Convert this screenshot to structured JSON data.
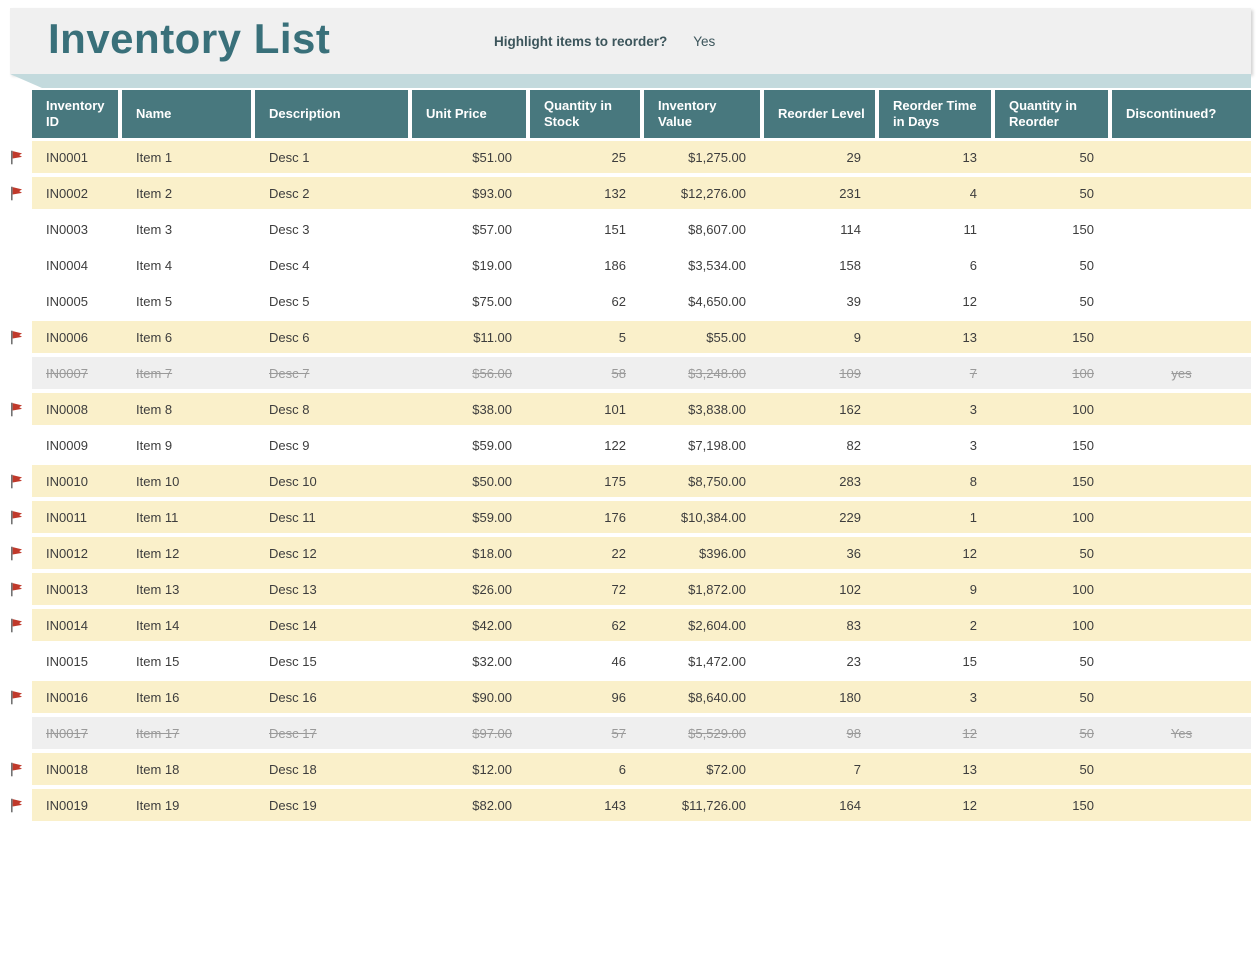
{
  "header": {
    "title": "Inventory List",
    "highlight_label": "Highlight items to reorder?",
    "highlight_value": "Yes"
  },
  "colors": {
    "accent_teal": "#48787e",
    "title_teal": "#39707a",
    "strip_teal": "#c3dadd",
    "highlight_row": "#faf0ca",
    "discontinued_row": "#efefef",
    "flag_red": "#c0392b"
  },
  "icons": {
    "flag": "reorder-flag-icon"
  },
  "table": {
    "columns": [
      {
        "key": "id",
        "label": "Inventory ID",
        "align": "left"
      },
      {
        "key": "name",
        "label": "Name",
        "align": "left"
      },
      {
        "key": "desc",
        "label": "Description",
        "align": "left"
      },
      {
        "key": "unit_price",
        "label": "Unit Price",
        "align": "right"
      },
      {
        "key": "qty_stock",
        "label": "Quantity in Stock",
        "align": "right"
      },
      {
        "key": "inv_value",
        "label": "Inventory Value",
        "align": "right"
      },
      {
        "key": "reorder_level",
        "label": "Reorder Level",
        "align": "right"
      },
      {
        "key": "reorder_time",
        "label": "Reorder Time in Days",
        "align": "right"
      },
      {
        "key": "qty_reorder",
        "label": "Quantity in Reorder",
        "align": "right"
      },
      {
        "key": "discontinued",
        "label": "Discontinued?",
        "align": "center"
      }
    ],
    "rows": [
      {
        "id": "IN0001",
        "name": "Item 1",
        "desc": "Desc 1",
        "unit_price": "$51.00",
        "qty_stock": "25",
        "inv_value": "$1,275.00",
        "reorder_level": "29",
        "reorder_time": "13",
        "qty_reorder": "50",
        "discontinued": "",
        "flag": true,
        "state": "highlight"
      },
      {
        "id": "IN0002",
        "name": "Item 2",
        "desc": "Desc 2",
        "unit_price": "$93.00",
        "qty_stock": "132",
        "inv_value": "$12,276.00",
        "reorder_level": "231",
        "reorder_time": "4",
        "qty_reorder": "50",
        "discontinued": "",
        "flag": true,
        "state": "highlight"
      },
      {
        "id": "IN0003",
        "name": "Item 3",
        "desc": "Desc 3",
        "unit_price": "$57.00",
        "qty_stock": "151",
        "inv_value": "$8,607.00",
        "reorder_level": "114",
        "reorder_time": "11",
        "qty_reorder": "150",
        "discontinued": "",
        "flag": false,
        "state": "normal"
      },
      {
        "id": "IN0004",
        "name": "Item 4",
        "desc": "Desc 4",
        "unit_price": "$19.00",
        "qty_stock": "186",
        "inv_value": "$3,534.00",
        "reorder_level": "158",
        "reorder_time": "6",
        "qty_reorder": "50",
        "discontinued": "",
        "flag": false,
        "state": "normal"
      },
      {
        "id": "IN0005",
        "name": "Item 5",
        "desc": "Desc 5",
        "unit_price": "$75.00",
        "qty_stock": "62",
        "inv_value": "$4,650.00",
        "reorder_level": "39",
        "reorder_time": "12",
        "qty_reorder": "50",
        "discontinued": "",
        "flag": false,
        "state": "normal"
      },
      {
        "id": "IN0006",
        "name": "Item 6",
        "desc": "Desc 6",
        "unit_price": "$11.00",
        "qty_stock": "5",
        "inv_value": "$55.00",
        "reorder_level": "9",
        "reorder_time": "13",
        "qty_reorder": "150",
        "discontinued": "",
        "flag": true,
        "state": "highlight"
      },
      {
        "id": "IN0007",
        "name": "Item 7",
        "desc": "Desc 7",
        "unit_price": "$56.00",
        "qty_stock": "58",
        "inv_value": "$3,248.00",
        "reorder_level": "109",
        "reorder_time": "7",
        "qty_reorder": "100",
        "discontinued": "yes",
        "flag": false,
        "state": "discontinued"
      },
      {
        "id": "IN0008",
        "name": "Item 8",
        "desc": "Desc 8",
        "unit_price": "$38.00",
        "qty_stock": "101",
        "inv_value": "$3,838.00",
        "reorder_level": "162",
        "reorder_time": "3",
        "qty_reorder": "100",
        "discontinued": "",
        "flag": true,
        "state": "highlight"
      },
      {
        "id": "IN0009",
        "name": "Item 9",
        "desc": "Desc 9",
        "unit_price": "$59.00",
        "qty_stock": "122",
        "inv_value": "$7,198.00",
        "reorder_level": "82",
        "reorder_time": "3",
        "qty_reorder": "150",
        "discontinued": "",
        "flag": false,
        "state": "normal"
      },
      {
        "id": "IN0010",
        "name": "Item 10",
        "desc": "Desc 10",
        "unit_price": "$50.00",
        "qty_stock": "175",
        "inv_value": "$8,750.00",
        "reorder_level": "283",
        "reorder_time": "8",
        "qty_reorder": "150",
        "discontinued": "",
        "flag": true,
        "state": "highlight"
      },
      {
        "id": "IN0011",
        "name": "Item 11",
        "desc": "Desc 11",
        "unit_price": "$59.00",
        "qty_stock": "176",
        "inv_value": "$10,384.00",
        "reorder_level": "229",
        "reorder_time": "1",
        "qty_reorder": "100",
        "discontinued": "",
        "flag": true,
        "state": "highlight"
      },
      {
        "id": "IN0012",
        "name": "Item 12",
        "desc": "Desc 12",
        "unit_price": "$18.00",
        "qty_stock": "22",
        "inv_value": "$396.00",
        "reorder_level": "36",
        "reorder_time": "12",
        "qty_reorder": "50",
        "discontinued": "",
        "flag": true,
        "state": "highlight"
      },
      {
        "id": "IN0013",
        "name": "Item 13",
        "desc": "Desc 13",
        "unit_price": "$26.00",
        "qty_stock": "72",
        "inv_value": "$1,872.00",
        "reorder_level": "102",
        "reorder_time": "9",
        "qty_reorder": "100",
        "discontinued": "",
        "flag": true,
        "state": "highlight"
      },
      {
        "id": "IN0014",
        "name": "Item 14",
        "desc": "Desc 14",
        "unit_price": "$42.00",
        "qty_stock": "62",
        "inv_value": "$2,604.00",
        "reorder_level": "83",
        "reorder_time": "2",
        "qty_reorder": "100",
        "discontinued": "",
        "flag": true,
        "state": "highlight"
      },
      {
        "id": "IN0015",
        "name": "Item 15",
        "desc": "Desc 15",
        "unit_price": "$32.00",
        "qty_stock": "46",
        "inv_value": "$1,472.00",
        "reorder_level": "23",
        "reorder_time": "15",
        "qty_reorder": "50",
        "discontinued": "",
        "flag": false,
        "state": "normal"
      },
      {
        "id": "IN0016",
        "name": "Item 16",
        "desc": "Desc 16",
        "unit_price": "$90.00",
        "qty_stock": "96",
        "inv_value": "$8,640.00",
        "reorder_level": "180",
        "reorder_time": "3",
        "qty_reorder": "50",
        "discontinued": "",
        "flag": true,
        "state": "highlight"
      },
      {
        "id": "IN0017",
        "name": "Item 17",
        "desc": "Desc 17",
        "unit_price": "$97.00",
        "qty_stock": "57",
        "inv_value": "$5,529.00",
        "reorder_level": "98",
        "reorder_time": "12",
        "qty_reorder": "50",
        "discontinued": "Yes",
        "flag": false,
        "state": "discontinued"
      },
      {
        "id": "IN0018",
        "name": "Item 18",
        "desc": "Desc 18",
        "unit_price": "$12.00",
        "qty_stock": "6",
        "inv_value": "$72.00",
        "reorder_level": "7",
        "reorder_time": "13",
        "qty_reorder": "50",
        "discontinued": "",
        "flag": true,
        "state": "highlight"
      },
      {
        "id": "IN0019",
        "name": "Item 19",
        "desc": "Desc 19",
        "unit_price": "$82.00",
        "qty_stock": "143",
        "inv_value": "$11,726.00",
        "reorder_level": "164",
        "reorder_time": "12",
        "qty_reorder": "150",
        "discontinued": "",
        "flag": true,
        "state": "highlight"
      }
    ]
  }
}
